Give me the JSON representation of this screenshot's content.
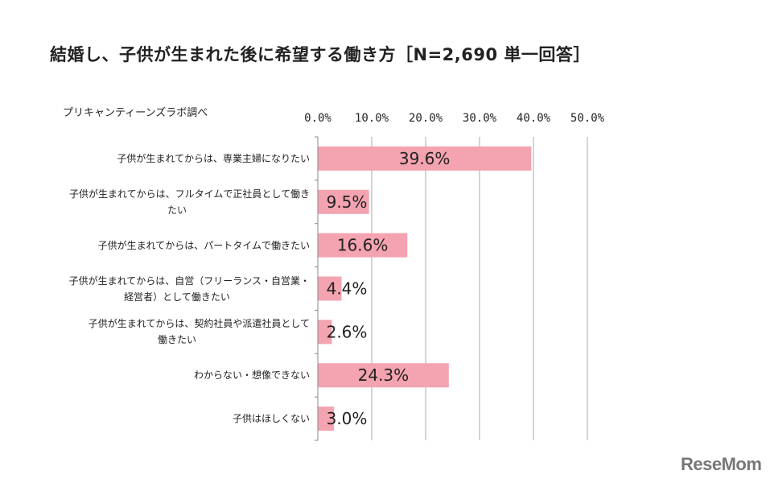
{
  "chart_data": {
    "type": "bar",
    "orientation": "horizontal",
    "title": "結婚し、子供が生まれた後に希望する働き方［N=2,690 単一回答］",
    "source_note": "プリキャンティーンズラボ調べ",
    "categories": [
      "子供が生まれてからは、専業主婦になりたい",
      "子供が生まれてからは、フルタイムで正社員として働きたい",
      "子供が生まれてからは、パートタイムで働きたい",
      "子供が生まれてからは、自営（フリーランス・自営業・経営者）として働きたい",
      "子供が生まれてからは、契約社員や派遣社員として働きたい",
      "わからない・想像できない",
      "子供はほしくない"
    ],
    "category_lines": [
      [
        "子供が生まれてからは、専業主婦になりたい"
      ],
      [
        "子供が生まれてからは、フルタイムで正社員として働き",
        "たい"
      ],
      [
        "子供が生まれてからは、パートタイムで働きたい"
      ],
      [
        "子供が生まれてからは、自営（フリーランス・自営業・",
        "経営者）として働きたい"
      ],
      [
        "子供が生まれてからは、契約社員や派遣社員として",
        "働きたい"
      ],
      [
        "わからない・想像できない"
      ],
      [
        "子供はほしくない"
      ]
    ],
    "values": [
      39.6,
      9.5,
      16.6,
      4.4,
      2.6,
      24.3,
      3.0
    ],
    "data_labels": [
      "39.6%",
      "9.5%",
      "16.6%",
      "4.4%",
      "2.6%",
      "24.3%",
      "3.0%"
    ],
    "xlim": [
      0,
      50
    ],
    "xticks": [
      0,
      10,
      20,
      30,
      40,
      50
    ],
    "xtick_labels": [
      "0.0%",
      "10.0%",
      "20.0%",
      "30.0%",
      "40.0%",
      "50.0%"
    ],
    "xlabel": "",
    "ylabel": "",
    "grid": true,
    "legend": "none",
    "colors": {
      "bar": "#f4a3b0",
      "grid": "#aaaaaa",
      "axis": "#888888"
    }
  },
  "branding": {
    "logo": "ReseMom"
  }
}
